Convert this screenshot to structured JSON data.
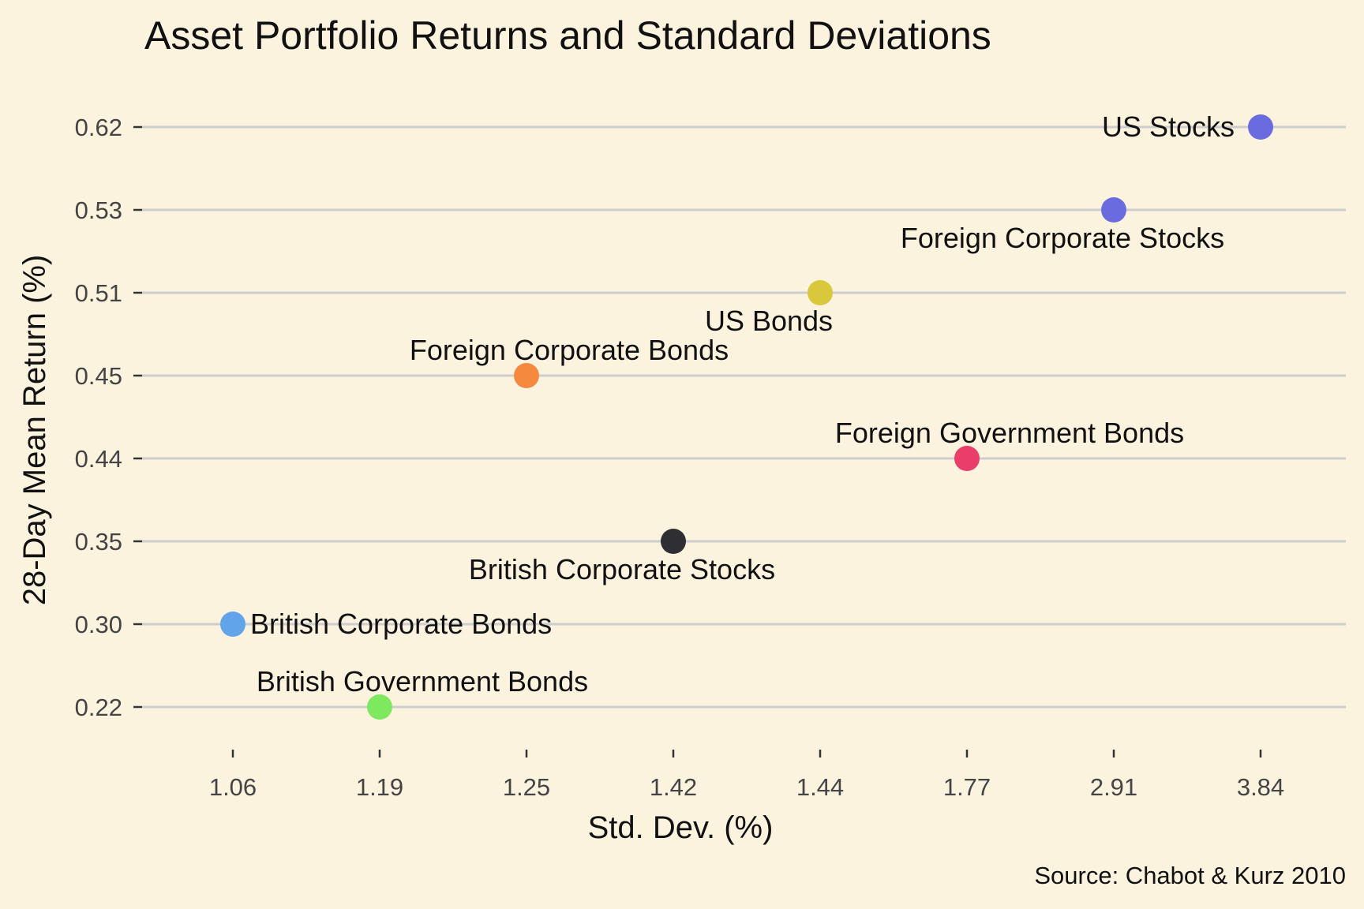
{
  "chart_data": {
    "type": "scatter",
    "title": "Asset Portfolio Returns and Standard Deviations",
    "xlabel": "Std. Dev. (%)",
    "ylabel": "28-Day Mean Return (%)",
    "caption": "Source: Chabot & Kurz 2010",
    "x_scale": "categorical",
    "y_scale": "categorical",
    "x_ticks": [
      "1.06",
      "1.19",
      "1.25",
      "1.42",
      "1.44",
      "1.77",
      "2.91",
      "3.84"
    ],
    "y_ticks": [
      "0.22",
      "0.30",
      "0.35",
      "0.44",
      "0.45",
      "0.51",
      "0.53",
      "0.62"
    ],
    "grid": "horizontal major lines",
    "legend": "none",
    "background_color": "#fcf3df",
    "points": [
      {
        "label": "US Stocks",
        "x": 3.84,
        "y": 0.62,
        "color": "#6b6be0",
        "label_position": "left"
      },
      {
        "label": "Foreign Corporate Stocks",
        "x": 2.91,
        "y": 0.53,
        "color": "#6b6be0",
        "label_position": "below"
      },
      {
        "label": "US Bonds",
        "x": 1.44,
        "y": 0.51,
        "color": "#d9c83c",
        "label_position": "below"
      },
      {
        "label": "Foreign Corporate Bonds",
        "x": 1.25,
        "y": 0.45,
        "color": "#f58a3e",
        "label_position": "above"
      },
      {
        "label": "Foreign Government Bonds",
        "x": 1.77,
        "y": 0.44,
        "color": "#ea3d6a",
        "label_position": "above"
      },
      {
        "label": "British Corporate Stocks",
        "x": 1.42,
        "y": 0.35,
        "color": "#2e2e33",
        "label_position": "below"
      },
      {
        "label": "British Corporate Bonds",
        "x": 1.06,
        "y": 0.3,
        "color": "#62a4ea",
        "label_position": "right"
      },
      {
        "label": "British Government Bonds",
        "x": 1.19,
        "y": 0.22,
        "color": "#7ee860",
        "label_position": "above"
      }
    ]
  }
}
